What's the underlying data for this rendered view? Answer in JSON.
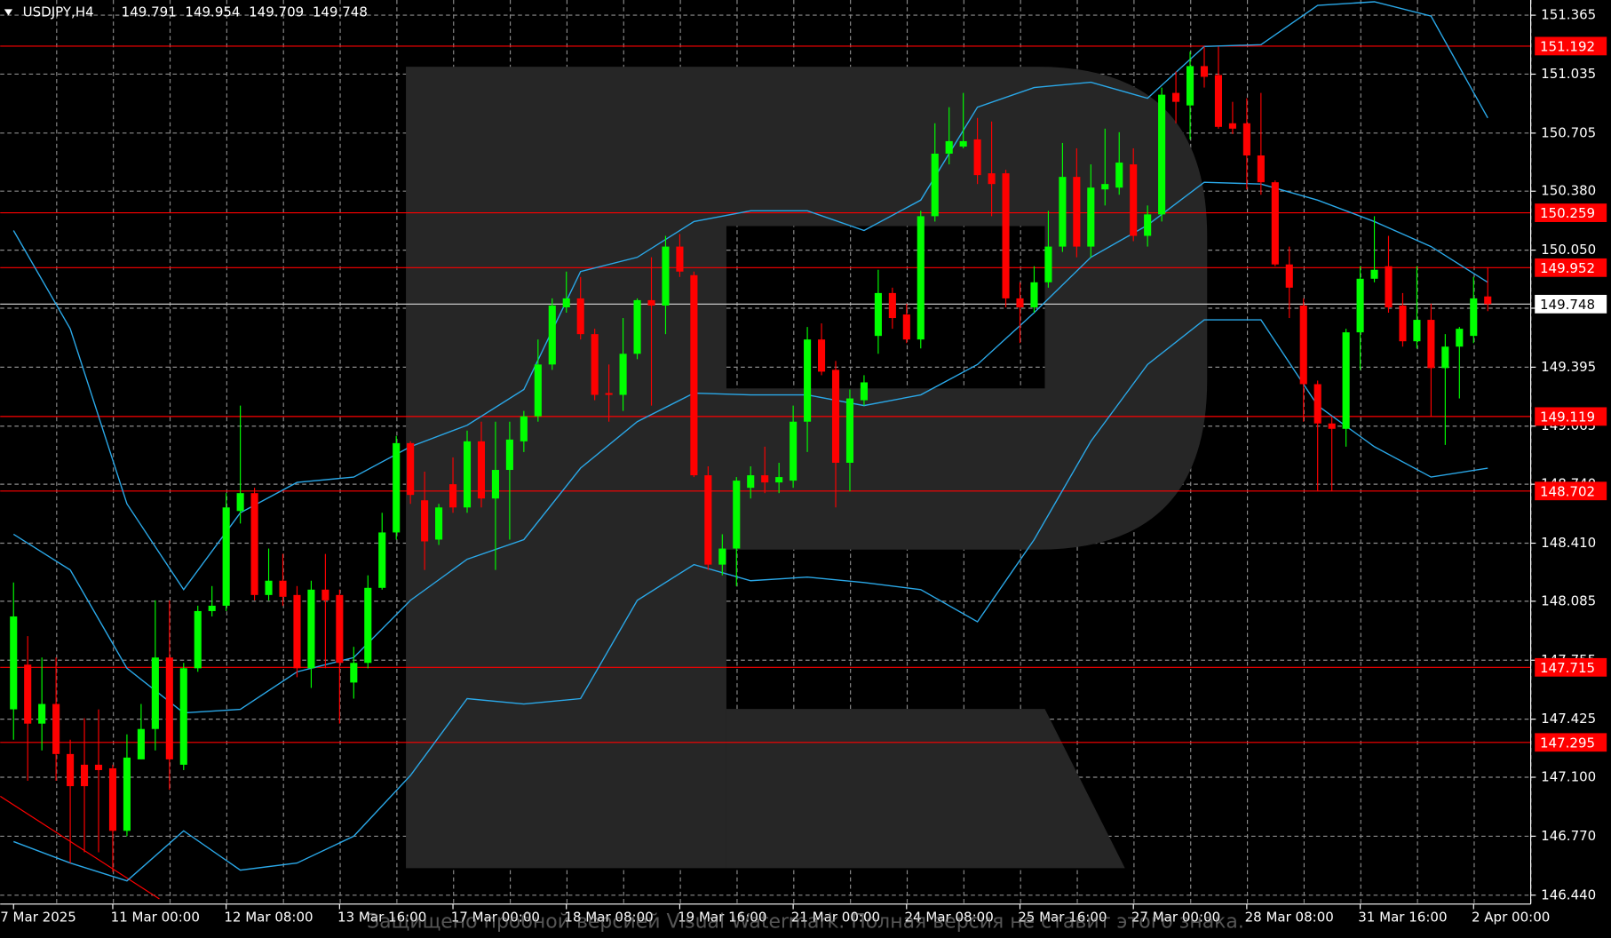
{
  "chart_data": {
    "type": "candlestick",
    "symbol": "USDJPY,H4",
    "watermark": "Защищено пробной версией Visual Watermark. Полная версия не ставит этого знака.",
    "categories": [
      "7 Mar 2025",
      null,
      null,
      null,
      null,
      null,
      null,
      "11 Mar 00:00",
      null,
      null,
      null,
      null,
      null,
      null,
      null,
      "12 Mar 08:00",
      null,
      null,
      null,
      null,
      null,
      null,
      null,
      "13 Mar 16:00",
      null,
      null,
      null,
      null,
      null,
      null,
      null,
      "17 Mar 00:00",
      null,
      null,
      null,
      null,
      null,
      null,
      null,
      "18 Mar 08:00",
      null,
      null,
      null,
      null,
      null,
      null,
      null,
      "19 Mar 16:00",
      null,
      null,
      null,
      null,
      null,
      null,
      null,
      "21 Mar 00:00",
      null,
      null,
      null,
      null,
      null,
      null,
      null,
      "24 Mar 08:00",
      null,
      null,
      null,
      null,
      null,
      null,
      null,
      "25 Mar 16:00",
      null,
      null,
      null,
      null,
      null,
      null,
      null,
      "27 Mar 00:00",
      null,
      null,
      null,
      null,
      null,
      null,
      null,
      "28 Mar 08:00",
      null,
      null,
      null,
      null,
      null,
      null,
      null,
      "31 Mar 16:00",
      null,
      null,
      null,
      null,
      null,
      null,
      null,
      "2 Apr 00:00",
      null
    ],
    "open": [
      147.48,
      147.73,
      147.4,
      147.51,
      147.23,
      147.17,
      147.17,
      147.15,
      146.8,
      147.2,
      147.37,
      147.77,
      147.17,
      147.71,
      148.03,
      148.06,
      148.59,
      148.69,
      148.12,
      148.2,
      148.12,
      147.71,
      148.15,
      148.12,
      147.63,
      147.74,
      148.16,
      148.47,
      148.97,
      148.65,
      148.43,
      148.74,
      148.61,
      148.98,
      148.66,
      148.82,
      148.98,
      149.12,
      149.41,
      149.73,
      149.78,
      149.58,
      149.25,
      149.24,
      149.47,
      149.77,
      149.74,
      150.07,
      149.91,
      148.79,
      148.29,
      148.38,
      148.72,
      148.79,
      148.75,
      148.76,
      149.09,
      149.55,
      149.38,
      148.86,
      149.21,
      149.57,
      149.81,
      149.69,
      149.55,
      150.24,
      150.59,
      150.63,
      150.67,
      150.48,
      150.48,
      149.78,
      149.73,
      149.87,
      150.07,
      150.46,
      150.07,
      150.39,
      150.4,
      150.53,
      150.13,
      150.25,
      150.93,
      150.86,
      151.08,
      151.03,
      150.76,
      150.76,
      150.58,
      150.43,
      149.97,
      149.74,
      149.3,
      149.08,
      149.05,
      149.59,
      149.89,
      149.96,
      149.74,
      149.54,
      149.66,
      149.39,
      149.51,
      149.57,
      149.791
    ],
    "high": [
      148.19,
      147.89,
      147.77,
      147.77,
      147.31,
      147.43,
      147.48,
      147.17,
      147.34,
      147.51,
      148.09,
      148.09,
      147.74,
      148.06,
      148.17,
      148.69,
      149.18,
      148.72,
      148.38,
      148.35,
      148.17,
      148.2,
      148.35,
      148.15,
      147.83,
      148.23,
      148.58,
      149.01,
      148.98,
      148.81,
      148.63,
      148.89,
      149.04,
      149.09,
      149.09,
      149.09,
      149.15,
      149.55,
      149.78,
      149.93,
      149.9,
      149.61,
      149.41,
      149.67,
      149.78,
      150.01,
      150.13,
      150.14,
      149.93,
      148.84,
      148.46,
      148.78,
      148.84,
      148.95,
      148.86,
      149.18,
      149.62,
      149.64,
      149.43,
      149.27,
      149.35,
      149.94,
      149.84,
      149.75,
      150.27,
      150.76,
      150.85,
      150.93,
      150.79,
      150.77,
      150.5,
      149.87,
      149.96,
      150.27,
      150.65,
      150.62,
      150.53,
      150.73,
      150.71,
      150.62,
      150.3,
      150.96,
      151.05,
      151.16,
      151.19,
      151.19,
      150.88,
      150.9,
      150.93,
      150.44,
      150.07,
      149.78,
      149.32,
      149.12,
      149.61,
      149.96,
      150.24,
      150.13,
      149.81,
      149.96,
      149.75,
      149.58,
      149.62,
      149.9,
      149.954
    ],
    "low": [
      147.31,
      147.08,
      147.25,
      147.08,
      146.62,
      146.68,
      146.68,
      146.57,
      146.77,
      147.2,
      147.25,
      147.03,
      147.14,
      147.69,
      148.0,
      148.03,
      148.52,
      148.09,
      148.09,
      148.06,
      147.66,
      147.6,
      147.71,
      147.4,
      147.54,
      147.71,
      148.15,
      148.43,
      148.63,
      148.26,
      148.4,
      148.58,
      148.58,
      148.61,
      148.26,
      148.43,
      148.92,
      149.09,
      149.38,
      149.7,
      149.55,
      149.21,
      149.09,
      149.15,
      149.44,
      149.18,
      149.58,
      149.9,
      148.78,
      148.26,
      148.23,
      148.17,
      148.66,
      148.69,
      148.69,
      148.72,
      148.92,
      149.35,
      148.61,
      148.7,
      149.18,
      149.47,
      149.61,
      149.53,
      149.5,
      150.21,
      150.53,
      150.62,
      150.42,
      150.24,
      149.73,
      149.53,
      149.7,
      149.84,
      150.04,
      150.01,
      150.01,
      150.3,
      150.36,
      150.1,
      150.07,
      150.21,
      150.76,
      150.67,
      150.96,
      150.73,
      150.7,
      150.39,
      150.36,
      149.96,
      149.67,
      149.09,
      148.7,
      148.7,
      148.95,
      149.38,
      149.87,
      149.7,
      149.51,
      149.5,
      149.12,
      148.96,
      149.22,
      149.53,
      149.709
    ],
    "close": [
      148.0,
      147.4,
      147.51,
      147.23,
      147.05,
      147.05,
      147.14,
      146.8,
      147.21,
      147.37,
      147.77,
      147.2,
      147.71,
      148.03,
      148.06,
      148.61,
      148.69,
      148.12,
      148.2,
      148.11,
      147.71,
      148.15,
      148.09,
      147.74,
      147.74,
      148.16,
      148.47,
      148.97,
      148.68,
      148.42,
      148.61,
      148.61,
      148.98,
      148.66,
      148.82,
      148.99,
      149.12,
      149.41,
      149.74,
      149.78,
      149.58,
      149.24,
      149.24,
      149.47,
      149.77,
      149.74,
      150.07,
      149.93,
      148.79,
      148.29,
      148.38,
      148.76,
      148.79,
      148.75,
      148.78,
      149.09,
      149.55,
      149.37,
      148.86,
      149.22,
      149.31,
      149.81,
      149.67,
      149.55,
      150.24,
      150.59,
      150.66,
      150.66,
      150.47,
      150.42,
      149.78,
      149.73,
      149.87,
      150.07,
      150.46,
      150.07,
      150.4,
      150.42,
      150.54,
      150.13,
      150.25,
      150.92,
      150.88,
      151.08,
      151.02,
      150.74,
      150.73,
      150.58,
      150.43,
      149.97,
      149.84,
      149.3,
      149.08,
      149.05,
      149.59,
      149.89,
      149.94,
      149.73,
      149.54,
      149.66,
      149.39,
      149.51,
      149.61,
      149.78,
      149.748
    ],
    "up_color": "#00ff00",
    "down_color": "#ff0000",
    "bands": {
      "color": "#2aa8e8",
      "x": [
        0,
        4,
        8,
        12,
        16,
        20,
        24,
        28,
        32,
        36,
        40,
        44,
        48,
        52,
        56,
        60,
        64,
        68,
        72,
        76,
        80,
        84,
        88,
        92,
        96,
        100,
        104
      ],
      "upper": [
        150.16,
        149.61,
        148.63,
        148.15,
        148.58,
        148.75,
        148.78,
        148.95,
        149.07,
        149.27,
        149.93,
        150.01,
        150.21,
        150.27,
        150.27,
        150.16,
        150.33,
        150.85,
        150.96,
        150.99,
        150.9,
        151.19,
        151.2,
        151.42,
        151.44,
        151.36,
        150.79
      ],
      "middle": [
        148.46,
        148.26,
        147.71,
        147.46,
        147.48,
        147.69,
        147.77,
        148.09,
        148.32,
        148.43,
        148.83,
        149.09,
        149.25,
        149.24,
        149.24,
        149.18,
        149.24,
        149.41,
        149.7,
        150.01,
        150.19,
        150.43,
        150.42,
        150.33,
        150.21,
        150.07,
        149.87
      ],
      "lower": [
        146.74,
        146.62,
        146.52,
        146.8,
        146.58,
        146.62,
        146.77,
        147.11,
        147.54,
        147.51,
        147.54,
        148.09,
        148.29,
        148.2,
        148.22,
        148.19,
        148.15,
        147.97,
        148.43,
        148.98,
        149.41,
        149.66,
        149.66,
        149.18,
        148.95,
        148.78,
        148.83
      ]
    },
    "levels": [
      151.192,
      150.259,
      149.952,
      149.119,
      148.702,
      147.715,
      147.295
    ],
    "level_color": "#ff0000",
    "last_price": 149.748,
    "ylim": [
      146.39,
      151.45
    ],
    "yticks": [
      151.365,
      151.035,
      150.705,
      {
        "value": 150.38,
        "label": "150.380"
      },
      {
        "value": 150.05,
        "label": "150.050"
      },
      149.725,
      149.395,
      149.065,
      {
        "value": 148.74,
        "label": "148.740"
      },
      {
        "value": 148.41,
        "label": "148.410"
      },
      148.085,
      147.755,
      147.425,
      {
        "value": 147.1,
        "label": "147.100"
      },
      {
        "value": 146.77,
        "label": "146.770"
      },
      {
        "value": 146.44,
        "label": "146.440"
      }
    ],
    "grid": true
  }
}
